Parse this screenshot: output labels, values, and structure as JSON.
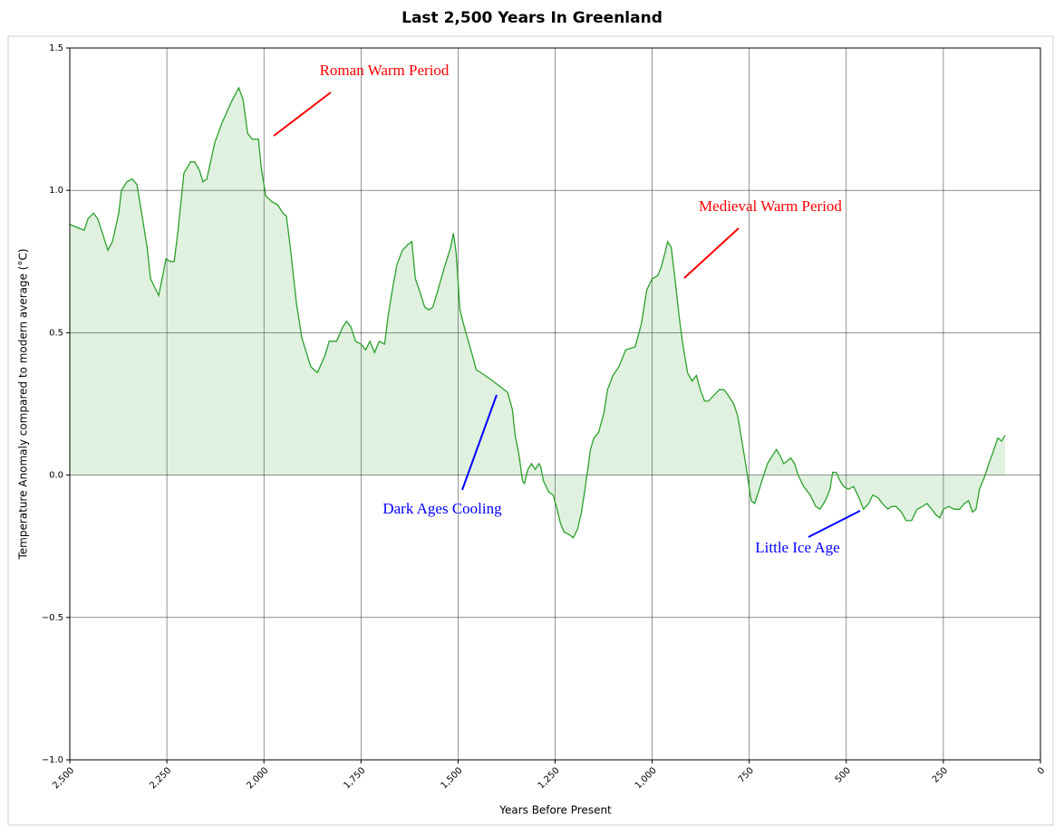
{
  "chart_data": {
    "type": "area",
    "title": "Last 2,500 Years In Greenland",
    "xlabel": "Years Before Present",
    "ylabel": "Temperature Anomaly compared to modern average (°C)",
    "color": "#2ca02c",
    "x": [
      2500,
      2481,
      2463,
      2453,
      2439,
      2428,
      2416,
      2402,
      2390,
      2374,
      2367,
      2353,
      2339,
      2327,
      2315,
      2301,
      2292,
      2271,
      2252,
      2241,
      2231,
      2222,
      2206,
      2189,
      2178,
      2166,
      2157,
      2147,
      2126,
      2107,
      2084,
      2065,
      2054,
      2042,
      2030,
      2014,
      2007,
      1995,
      1979,
      1965,
      1951,
      1942,
      1932,
      1916,
      1902,
      1879,
      1862,
      1843,
      1832,
      1813,
      1797,
      1787,
      1776,
      1764,
      1750,
      1738,
      1727,
      1715,
      1703,
      1689,
      1680,
      1668,
      1657,
      1643,
      1629,
      1619,
      1610,
      1600,
      1586,
      1575,
      1565,
      1554,
      1535,
      1519,
      1512,
      1505,
      1495,
      1484,
      1465,
      1453,
      1430,
      1400,
      1372,
      1360,
      1353,
      1343,
      1334,
      1329,
      1320,
      1311,
      1301,
      1292,
      1287,
      1280,
      1266,
      1255,
      1245,
      1236,
      1227,
      1213,
      1203,
      1192,
      1182,
      1173,
      1159,
      1150,
      1138,
      1124,
      1115,
      1101,
      1086,
      1077,
      1068,
      1044,
      1028,
      1014,
      1000,
      986,
      977,
      967,
      960,
      951,
      942,
      930,
      921,
      909,
      897,
      886,
      876,
      865,
      855,
      841,
      827,
      815,
      804,
      790,
      780,
      769,
      757,
      745,
      736,
      724,
      715,
      703,
      694,
      680,
      671,
      661,
      652,
      643,
      633,
      624,
      610,
      593,
      579,
      568,
      554,
      542,
      535,
      526,
      516,
      507,
      495,
      481,
      467,
      456,
      442,
      432,
      418,
      407,
      393,
      383,
      372,
      358,
      346,
      332,
      318,
      304,
      292,
      280,
      269,
      259,
      250,
      236,
      222,
      208,
      196,
      185,
      175,
      166,
      157,
      145,
      133,
      122,
      110,
      100,
      91
    ],
    "values": [
      0.88,
      0.87,
      0.86,
      0.9,
      0.92,
      0.9,
      0.85,
      0.79,
      0.82,
      0.92,
      1.0,
      1.03,
      1.04,
      1.02,
      0.92,
      0.8,
      0.69,
      0.63,
      0.76,
      0.75,
      0.75,
      0.85,
      1.06,
      1.1,
      1.1,
      1.07,
      1.03,
      1.04,
      1.17,
      1.24,
      1.31,
      1.36,
      1.32,
      1.2,
      1.18,
      1.18,
      1.08,
      0.98,
      0.96,
      0.95,
      0.92,
      0.91,
      0.8,
      0.6,
      0.48,
      0.38,
      0.36,
      0.42,
      0.47,
      0.47,
      0.52,
      0.54,
      0.52,
      0.47,
      0.46,
      0.44,
      0.47,
      0.43,
      0.47,
      0.46,
      0.56,
      0.66,
      0.74,
      0.79,
      0.81,
      0.82,
      0.69,
      0.65,
      0.59,
      0.58,
      0.59,
      0.64,
      0.73,
      0.8,
      0.85,
      0.78,
      0.58,
      0.52,
      0.43,
      0.37,
      0.35,
      0.32,
      0.29,
      0.23,
      0.14,
      0.07,
      -0.02,
      -0.03,
      0.02,
      0.04,
      0.02,
      0.04,
      0.03,
      -0.02,
      -0.06,
      -0.07,
      -0.12,
      -0.17,
      -0.2,
      -0.21,
      -0.22,
      -0.19,
      -0.13,
      -0.05,
      0.09,
      0.13,
      0.15,
      0.22,
      0.3,
      0.35,
      0.38,
      0.41,
      0.44,
      0.45,
      0.53,
      0.65,
      0.69,
      0.7,
      0.73,
      0.78,
      0.82,
      0.8,
      0.7,
      0.55,
      0.46,
      0.36,
      0.33,
      0.35,
      0.3,
      0.26,
      0.26,
      0.28,
      0.3,
      0.3,
      0.28,
      0.25,
      0.21,
      0.12,
      0.02,
      -0.09,
      -0.1,
      -0.05,
      -0.01,
      0.04,
      0.06,
      0.09,
      0.07,
      0.04,
      0.05,
      0.06,
      0.04,
      0.0,
      -0.04,
      -0.07,
      -0.11,
      -0.12,
      -0.09,
      -0.05,
      0.01,
      0.01,
      -0.02,
      -0.04,
      -0.05,
      -0.04,
      -0.08,
      -0.12,
      -0.1,
      -0.07,
      -0.08,
      -0.1,
      -0.12,
      -0.11,
      -0.11,
      -0.13,
      -0.16,
      -0.16,
      -0.12,
      -0.11,
      -0.1,
      -0.12,
      -0.14,
      -0.15,
      -0.12,
      -0.11,
      -0.12,
      -0.12,
      -0.1,
      -0.09,
      -0.13,
      -0.12,
      -0.05,
      -0.01,
      0.04,
      0.08,
      0.13,
      0.12,
      0.14
    ],
    "xlim": [
      2500,
      0
    ],
    "xticks": [
      {
        "value": 2500,
        "label": "2,500"
      },
      {
        "value": 2250,
        "label": "2,250"
      },
      {
        "value": 2000,
        "label": "2,000"
      },
      {
        "value": 1750,
        "label": "1,750"
      },
      {
        "value": 1500,
        "label": "1,500"
      },
      {
        "value": 1250,
        "label": "1,250"
      },
      {
        "value": 1000,
        "label": "1,000"
      },
      750,
      500,
      250,
      0
    ],
    "ylim": [
      -1.0,
      1.5
    ],
    "yticks": [
      {
        "value": -1,
        "label": "−1.0"
      },
      {
        "value": -0.5,
        "label": "−0.5"
      },
      {
        "value": 0,
        "label": "0.0"
      },
      0.5,
      {
        "value": 1,
        "label": "1.0"
      },
      1.5
    ],
    "grid": true,
    "annotations": [
      {
        "text": "Roman Warm Period",
        "color": "#ff0000"
      },
      {
        "text": "Medieval Warm Period",
        "color": "#ff0000"
      },
      {
        "text": "Dark Ages Cooling",
        "color": "#0000ff"
      },
      {
        "text": "Little Ice Age",
        "color": "#0000ff"
      }
    ]
  }
}
